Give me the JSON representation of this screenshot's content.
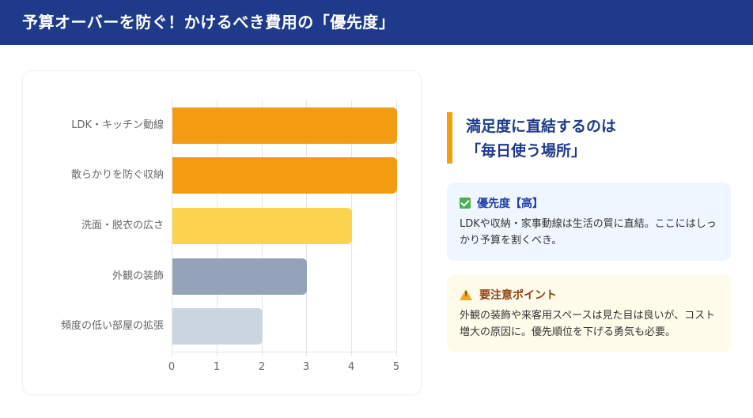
{
  "header": {
    "title": "予算オーバーを防ぐ！かけるべき費用の「優先度」"
  },
  "chart_data": {
    "type": "bar",
    "orientation": "horizontal",
    "title": "",
    "xlabel": "",
    "ylabel": "",
    "categories": [
      "LDK・キッチン動線",
      "散らかりを防ぐ収納",
      "洗面・脱衣の広さ",
      "外観の装飾",
      "頻度の低い部屋の拡張"
    ],
    "values": [
      5,
      5,
      4,
      3,
      2
    ],
    "colors": [
      "#f39c12",
      "#f39c12",
      "#fcd34d",
      "#94a3b8",
      "#cbd5e1"
    ],
    "xlim": [
      0,
      5
    ],
    "xticks": [
      "0",
      "1",
      "2",
      "3",
      "4",
      "5"
    ],
    "grid": true,
    "legend": "none"
  },
  "side": {
    "title_line1": "満足度に直結するのは",
    "title_line2": "「毎日使う場所」",
    "accent_color": "#f59e0b",
    "priority_box": {
      "icon": "check-icon",
      "heading": "優先度【高】",
      "text": "LDKや収納・家事動線は生活の質に直結。ここにはしっかり予算を割くべき。"
    },
    "caution_box": {
      "icon": "warning-icon",
      "heading": "要注意ポイント",
      "text": "外観の装飾や来客用スペースは見た目は良いが、コスト増大の原因に。優先順位を下げる勇気も必要。"
    }
  }
}
